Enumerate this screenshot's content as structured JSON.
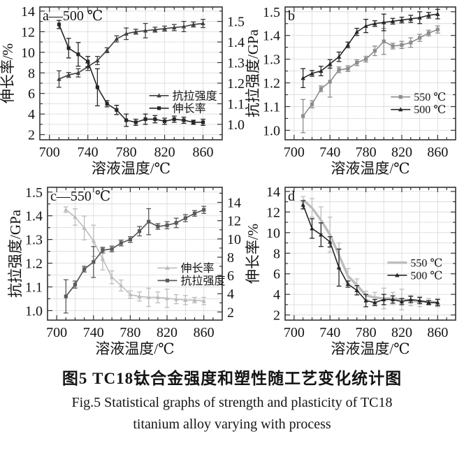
{
  "figure": {
    "caption_zh": "图5 TC18钛合金强度和塑性随工艺变化统计图",
    "caption_en_line1": "Fig.5  Statistical graphs of strength and plasticity of TC18",
    "caption_en_line2": "titanium alloy varying with process"
  },
  "chart_data": {
    "type": "line",
    "x_label": "溶液温度/℃",
    "x_values": [
      710,
      720,
      730,
      740,
      750,
      760,
      770,
      780,
      790,
      800,
      810,
      820,
      830,
      840,
      850,
      860
    ],
    "panels": [
      {
        "id": "a",
        "corner_label": "a—500 ℃",
        "x_axis": {
          "label": "溶液温度/℃",
          "min": 690,
          "max": 880,
          "major_ticks": [
            700,
            740,
            780,
            820,
            860
          ],
          "minor_step": 10,
          "grid_step": 20
        },
        "left_axis": {
          "label": "伸长率/%",
          "min": 1.5,
          "max": 14.4,
          "major_ticks": [
            2,
            4,
            6,
            8,
            10,
            12,
            14
          ],
          "minor_step": 1,
          "decimals": 0
        },
        "right_axis": {
          "label": "",
          "min": 0.925,
          "max": 1.57,
          "major_ticks": [
            1.0,
            1.1,
            1.2,
            1.3,
            1.4,
            1.5
          ],
          "minor_step": 0.05,
          "decimals": 1
        },
        "legend": {
          "fx": 0.6,
          "fy": 0.62
        },
        "series": [
          {
            "name": "抗拉强度",
            "axis": "right",
            "color": "#3f3f3f",
            "marker": "triangle",
            "line_width": 1.6,
            "values": [
              1.22,
              1.24,
              1.25,
              1.28,
              1.31,
              1.36,
              1.415,
              1.44,
              1.45,
              1.455,
              1.46,
              1.465,
              1.47,
              1.475,
              1.485,
              1.49
            ],
            "err": [
              0.04,
              0.012,
              0.02,
              0.018,
              0.02,
              0.012,
              0.015,
              0.028,
              0.012,
              0.035,
              0.012,
              0.012,
              0.015,
              0.025,
              0.012,
              0.02
            ]
          },
          {
            "name": "伸长率",
            "axis": "left",
            "color": "#262626",
            "marker": "square",
            "line_width": 1.6,
            "values": [
              12.7,
              10.4,
              9.8,
              9.1,
              6.6,
              5.0,
              4.4,
              3.4,
              3.2,
              3.5,
              3.5,
              3.3,
              3.5,
              3.4,
              3.2,
              3.2
            ],
            "err": [
              0.4,
              0.95,
              1.15,
              0.5,
              1.8,
              0.3,
              0.45,
              0.6,
              0.3,
              0.5,
              0.35,
              0.3,
              0.3,
              0.3,
              0.2,
              0.3
            ]
          }
        ]
      },
      {
        "id": "b",
        "corner_label": "b",
        "x_axis": {
          "label": "溶液温度/℃",
          "min": 690,
          "max": 880,
          "major_ticks": [
            700,
            740,
            780,
            820,
            860
          ],
          "minor_step": 10,
          "grid_step": 20
        },
        "left_axis": {
          "label": "抗拉强度/GPa",
          "min": 0.96,
          "max": 1.52,
          "major_ticks": [
            1.0,
            1.1,
            1.2,
            1.3,
            1.4,
            1.5
          ],
          "minor_step": 0.05,
          "decimals": 1
        },
        "right_axis": null,
        "legend": {
          "fx": 0.62,
          "fy": 0.63
        },
        "series": [
          {
            "name": "550 ℃",
            "axis": "left",
            "color": "#8c8c8c",
            "marker": "square",
            "line_width": 1.6,
            "values": [
              1.06,
              1.11,
              1.175,
              1.205,
              1.255,
              1.26,
              1.285,
              1.3,
              1.335,
              1.375,
              1.355,
              1.36,
              1.37,
              1.39,
              1.41,
              1.425
            ],
            "err": [
              0.07,
              0.015,
              0.012,
              0.065,
              0.012,
              0.012,
              0.012,
              0.012,
              0.02,
              0.055,
              0.012,
              0.015,
              0.02,
              0.015,
              0.012,
              0.015
            ]
          },
          {
            "name": "500 ℃",
            "axis": "left",
            "color": "#262626",
            "marker": "triangle",
            "line_width": 1.6,
            "values": [
              1.22,
              1.24,
              1.25,
              1.28,
              1.31,
              1.36,
              1.415,
              1.44,
              1.45,
              1.455,
              1.46,
              1.465,
              1.47,
              1.475,
              1.485,
              1.49
            ],
            "err": [
              0.04,
              0.012,
              0.02,
              0.018,
              0.02,
              0.012,
              0.015,
              0.028,
              0.012,
              0.035,
              0.012,
              0.012,
              0.015,
              0.025,
              0.012,
              0.02
            ]
          }
        ]
      },
      {
        "id": "c",
        "corner_label": "c—550 ℃",
        "x_axis": {
          "label": "溶液温度/℃",
          "min": 690,
          "max": 880,
          "major_ticks": [
            700,
            740,
            780,
            820,
            860
          ],
          "minor_step": 10,
          "grid_step": 20
        },
        "left_axis": {
          "label": "抗拉强度/GPa",
          "min": 0.96,
          "max": 1.52,
          "major_ticks": [
            1.0,
            1.1,
            1.2,
            1.3,
            1.4,
            1.5
          ],
          "minor_step": 0.05,
          "decimals": 1
        },
        "right_axis": {
          "label": "",
          "min": 1.11,
          "max": 15.65,
          "major_ticks": [
            2,
            4,
            6,
            8,
            10,
            12,
            14
          ],
          "minor_step": 1,
          "decimals": 0
        },
        "legend": {
          "fx": 0.63,
          "fy": 0.56
        },
        "series": [
          {
            "name": "伸长率",
            "axis": "right",
            "color": "#bcbcbc",
            "marker": "triangle",
            "line_width": 1.6,
            "values": [
              13.2,
              12.4,
              11.2,
              9.8,
              7.8,
              5.8,
              4.9,
              3.9,
              3.7,
              3.6,
              3.6,
              3.5,
              3.4,
              3.3,
              3.3,
              3.2
            ],
            "err": [
              0.3,
              0.9,
              1.3,
              1.7,
              1.2,
              0.7,
              0.6,
              0.4,
              0.5,
              1.0,
              0.6,
              1.0,
              0.5,
              0.5,
              0.3,
              0.4
            ]
          },
          {
            "name": "抗拉强度",
            "axis": "left",
            "color": "#595959",
            "marker": "square",
            "line_width": 1.7,
            "values": [
              1.06,
              1.11,
              1.175,
              1.205,
              1.255,
              1.26,
              1.285,
              1.3,
              1.335,
              1.375,
              1.355,
              1.36,
              1.37,
              1.39,
              1.41,
              1.425
            ],
            "err": [
              0.07,
              0.015,
              0.012,
              0.065,
              0.012,
              0.012,
              0.012,
              0.012,
              0.02,
              0.055,
              0.012,
              0.015,
              0.02,
              0.015,
              0.012,
              0.015
            ]
          }
        ]
      },
      {
        "id": "d",
        "corner_label": "d",
        "x_axis": {
          "label": "溶液温度/℃",
          "min": 690,
          "max": 880,
          "major_ticks": [
            700,
            740,
            780,
            820,
            860
          ],
          "minor_step": 10,
          "grid_step": 20
        },
        "left_axis": {
          "label": "伸长率/%",
          "min": 1.5,
          "max": 14.4,
          "major_ticks": [
            2,
            4,
            6,
            8,
            10,
            12,
            14
          ],
          "minor_step": 1,
          "decimals": 0
        },
        "right_axis": null,
        "legend": {
          "fx": 0.6,
          "fy": 0.52
        },
        "series": [
          {
            "name": "550 ℃",
            "axis": "left",
            "color": "#bcbcbc",
            "marker": "none",
            "line_width": 3.4,
            "values": [
              13.2,
              12.4,
              11.2,
              9.8,
              7.8,
              5.8,
              4.9,
              3.9,
              3.7,
              3.6,
              3.6,
              3.5,
              3.4,
              3.3,
              3.3,
              3.2
            ],
            "err": [
              0.3,
              0.9,
              1.3,
              1.7,
              1.2,
              0.7,
              0.6,
              0.4,
              0.5,
              1.0,
              0.6,
              1.0,
              0.5,
              0.5,
              0.3,
              0.4
            ]
          },
          {
            "name": "500 ℃",
            "axis": "left",
            "color": "#262626",
            "marker": "triangle",
            "line_width": 1.6,
            "values": [
              12.7,
              10.4,
              9.8,
              9.1,
              6.6,
              5.0,
              4.4,
              3.4,
              3.2,
              3.5,
              3.5,
              3.3,
              3.5,
              3.4,
              3.2,
              3.2
            ],
            "err": [
              0.4,
              0.95,
              1.15,
              0.5,
              1.8,
              0.3,
              0.45,
              0.6,
              0.3,
              0.5,
              0.35,
              0.3,
              0.3,
              0.3,
              0.2,
              0.3
            ]
          }
        ]
      }
    ]
  }
}
